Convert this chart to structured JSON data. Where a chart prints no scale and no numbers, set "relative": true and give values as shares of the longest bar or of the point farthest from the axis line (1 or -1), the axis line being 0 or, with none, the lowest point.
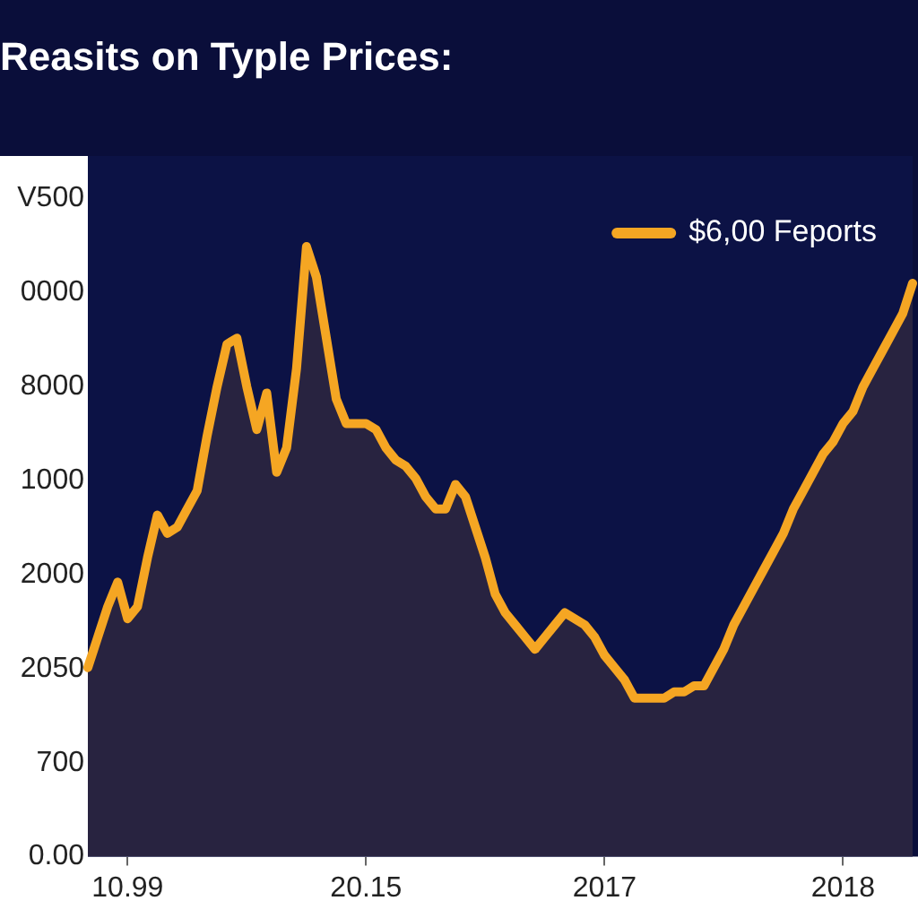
{
  "chart_data": {
    "type": "area",
    "title": "Reasits on Typle Prices:",
    "relative": true,
    "categories": [
      null,
      null,
      null,
      null,
      "10.99",
      null,
      null,
      null,
      null,
      null,
      null,
      null,
      null,
      null,
      null,
      null,
      null,
      null,
      null,
      null,
      null,
      null,
      null,
      null,
      null,
      null,
      null,
      null,
      "20.15",
      null,
      null,
      null,
      null,
      null,
      null,
      null,
      null,
      null,
      null,
      null,
      null,
      null,
      null,
      null,
      null,
      null,
      null,
      null,
      null,
      null,
      null,
      null,
      "2017",
      null,
      null,
      null,
      null,
      null,
      null,
      null,
      null,
      null,
      null,
      null,
      null,
      null,
      null,
      null,
      null,
      null,
      null,
      null,
      null,
      null,
      null,
      null,
      "2018",
      null,
      null,
      null,
      null,
      null,
      null,
      null
    ],
    "series": [
      {
        "name": "$6,00 Feports",
        "color": "#f5a623",
        "values": [
          0.31,
          0.36,
          0.41,
          0.45,
          0.39,
          0.41,
          0.49,
          0.56,
          0.53,
          0.54,
          0.57,
          0.6,
          0.69,
          0.77,
          0.84,
          0.85,
          0.77,
          0.7,
          0.76,
          0.63,
          0.67,
          0.8,
          1,
          0.95,
          0.85,
          0.75,
          0.71,
          0.71,
          0.71,
          0.7,
          0.67,
          0.65,
          0.64,
          0.62,
          0.59,
          0.57,
          0.57,
          0.61,
          0.59,
          0.54,
          0.49,
          0.43,
          0.4,
          0.38,
          0.36,
          0.34,
          0.36,
          0.38,
          0.4,
          0.39,
          0.38,
          0.36,
          0.33,
          0.31,
          0.29,
          0.26,
          0.26,
          0.26,
          0.26,
          0.27,
          0.27,
          0.28,
          0.28,
          0.31,
          0.34,
          0.38,
          0.41,
          0.44,
          0.47,
          0.5,
          0.53,
          0.57,
          0.6,
          0.63,
          0.66,
          0.68,
          0.71,
          0.73,
          0.77,
          0.8,
          0.83,
          0.86,
          0.89,
          0.94
        ]
      }
    ],
    "annotations": [
      "V500",
      "0000",
      "8000",
      "1000",
      "2000",
      "2050",
      "700",
      "0.00"
    ],
    "legend": "top right",
    "marker": "none",
    "line_style": "solid"
  }
}
